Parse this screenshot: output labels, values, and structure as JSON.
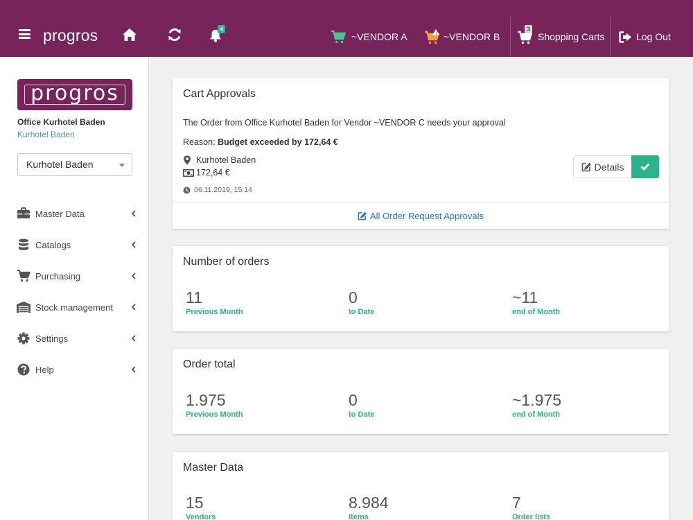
{
  "header": {
    "brand": "progros",
    "notifications_count": "4",
    "vendor_a": "~VENDOR A",
    "vendor_b": "~VENDOR B",
    "carts_count": "3",
    "shopping_carts": "Shopping Carts",
    "logout": "Log Out"
  },
  "colors": {
    "brand": "#76245a",
    "accent": "#29b48b",
    "link": "#2a78b8"
  },
  "sidebar": {
    "logo_text": "progros",
    "office_name": "Office Kurhotel Baden",
    "office_sub": "Kurhotel Baden",
    "location_select": "Kurhotel Baden",
    "items": [
      {
        "label": "Master Data",
        "icon": "briefcase-icon"
      },
      {
        "label": "Catalogs",
        "icon": "database-icon"
      },
      {
        "label": "Purchasing",
        "icon": "cart-icon"
      },
      {
        "label": "Stock management",
        "icon": "warehouse-icon"
      },
      {
        "label": "Settings",
        "icon": "gear-icon"
      },
      {
        "label": "Help",
        "icon": "question-icon"
      }
    ]
  },
  "approvals": {
    "title": "Cart Approvals",
    "message": "The Order from Office Kurhotel Baden for Vendor ~VENDOR C needs your approval",
    "reason_label": "Reason:",
    "reason_value": "Budget exceeded by 172,64 €",
    "location": "Kurhotel Baden",
    "amount": "172,64 €",
    "timestamp": "06.11.2019, 15:14",
    "details_button": "Details",
    "all_link": "All Order Request Approvals"
  },
  "orders": {
    "title": "Number of orders",
    "stats": [
      {
        "value": "11",
        "label": "Previous Month"
      },
      {
        "value": "0",
        "label": "to Date"
      },
      {
        "value": "~11",
        "label": "end of Month"
      }
    ]
  },
  "total": {
    "title": "Order total",
    "stats": [
      {
        "value": "1.975",
        "label": "Previous Month"
      },
      {
        "value": "0",
        "label": "to Date"
      },
      {
        "value": "~1.975",
        "label": "end of Month"
      }
    ]
  },
  "master": {
    "title": "Master Data",
    "stats": [
      {
        "value": "15",
        "label": "Vendors"
      },
      {
        "value": "8.984",
        "label": "Items"
      },
      {
        "value": "7",
        "label": "Order lists"
      }
    ]
  }
}
